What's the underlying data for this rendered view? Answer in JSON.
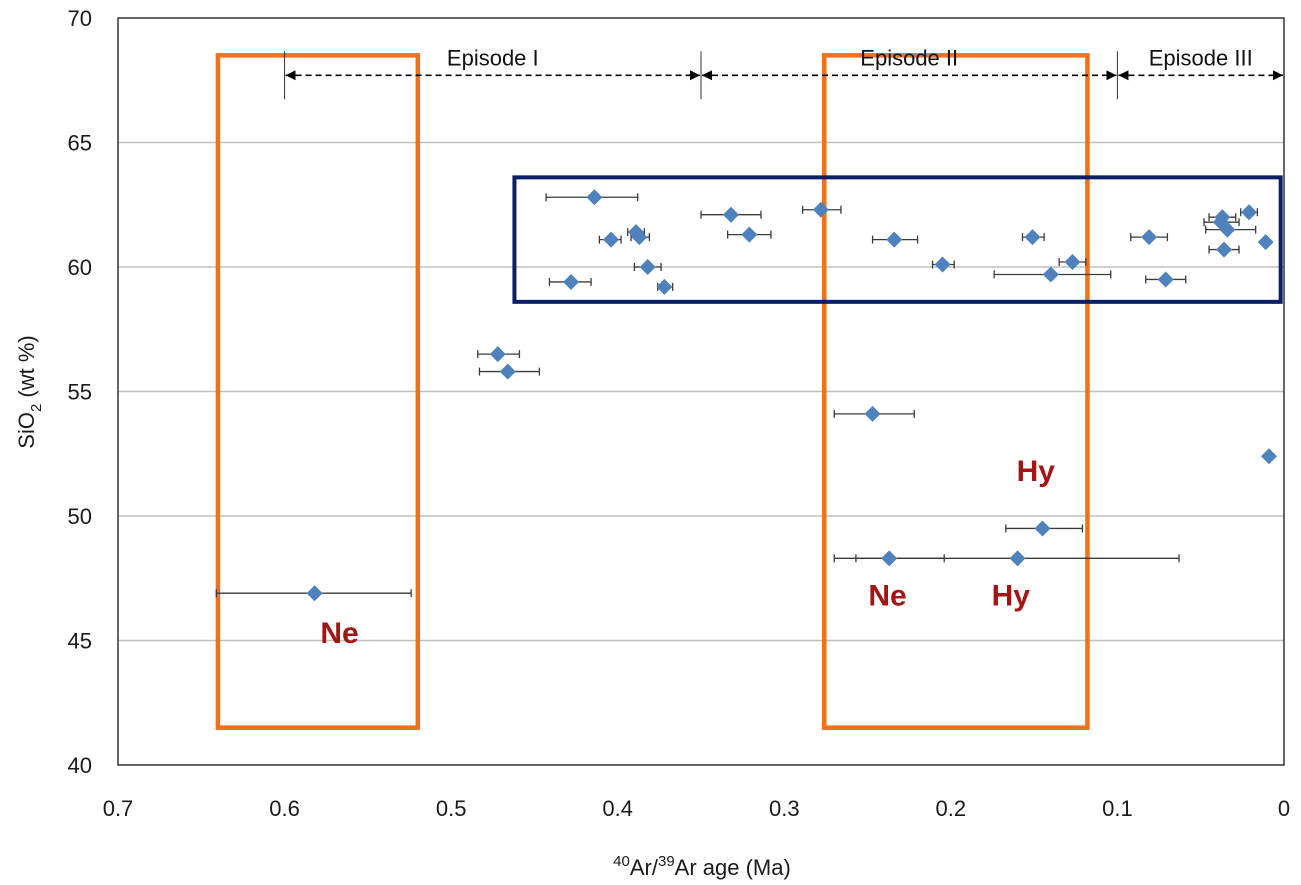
{
  "chart_data": {
    "type": "scatter",
    "xlabel": "40Ar/39Ar age (Ma)",
    "xlabel_parts": {
      "sup1": "40",
      "text1": "Ar/",
      "sup2": "39",
      "text2": "Ar age (Ma)"
    },
    "ylabel": "SiO2 (wt %)",
    "ylabel_parts": {
      "text1": "SiO",
      "sub": "2",
      "text2": " (wt %)"
    },
    "xlim": [
      0.7,
      0
    ],
    "ylim": [
      40,
      70
    ],
    "x_reversed": true,
    "grid": "horizontal",
    "x_ticks": [
      0.7,
      0.6,
      0.5,
      0.4,
      0.3,
      0.2,
      0.1,
      0
    ],
    "x_tick_labels": [
      "0.7",
      "0.6",
      "0.5",
      "0.4",
      "0.3",
      "0.2",
      "0.1",
      "0"
    ],
    "y_ticks": [
      40,
      45,
      50,
      55,
      60,
      65,
      70
    ],
    "y_tick_labels": [
      "40",
      "45",
      "50",
      "55",
      "60",
      "65",
      "70"
    ],
    "colors": {
      "points": "#4f81bd",
      "error_bars": "#3a3a3a",
      "grid": "#bfbfbf",
      "orange_box": "#f0701e",
      "blue_box": "#0b1f66",
      "rock_label": "#a31515"
    },
    "series": [
      {
        "marker": "diamond",
        "points": [
          {
            "x": 0.582,
            "y": 46.9,
            "xerr": [
              0.641,
              0.524
            ]
          },
          {
            "x": 0.472,
            "y": 56.5,
            "xerr": [
              0.484,
              0.459
            ]
          },
          {
            "x": 0.466,
            "y": 55.8,
            "xerr": [
              0.483,
              0.447
            ]
          },
          {
            "x": 0.428,
            "y": 59.4,
            "xerr": [
              0.441,
              0.416
            ]
          },
          {
            "x": 0.414,
            "y": 62.8,
            "xerr": [
              0.443,
              0.388
            ]
          },
          {
            "x": 0.404,
            "y": 61.1,
            "xerr": [
              0.411,
              0.398
            ]
          },
          {
            "x": 0.389,
            "y": 61.4,
            "xerr": [
              0.394,
              0.384
            ]
          },
          {
            "x": 0.387,
            "y": 61.2,
            "xerr": [
              0.392,
              0.381
            ]
          },
          {
            "x": 0.382,
            "y": 60.0,
            "xerr": [
              0.39,
              0.374
            ]
          },
          {
            "x": 0.372,
            "y": 59.2,
            "xerr": [
              0.376,
              0.367
            ]
          },
          {
            "x": 0.332,
            "y": 62.1,
            "xerr": [
              0.35,
              0.314
            ]
          },
          {
            "x": 0.321,
            "y": 61.3,
            "xerr": [
              0.334,
              0.308
            ]
          },
          {
            "x": 0.278,
            "y": 62.3,
            "xerr": [
              0.289,
              0.266
            ]
          },
          {
            "x": 0.247,
            "y": 54.1,
            "xerr": [
              0.27,
              0.222
            ]
          },
          {
            "x": 0.237,
            "y": 48.3,
            "xerr": [
              0.27,
              0.204
            ]
          },
          {
            "x": 0.234,
            "y": 61.1,
            "xerr": [
              0.247,
              0.22
            ]
          },
          {
            "x": 0.205,
            "y": 60.1,
            "xerr": [
              0.211,
              0.198
            ]
          },
          {
            "x": 0.16,
            "y": 48.3,
            "xerr": [
              0.257,
              0.063
            ]
          },
          {
            "x": 0.151,
            "y": 61.2,
            "xerr": [
              0.157,
              0.144
            ]
          },
          {
            "x": 0.145,
            "y": 49.5,
            "xerr": [
              0.167,
              0.121
            ]
          },
          {
            "x": 0.14,
            "y": 59.7,
            "xerr": [
              0.174,
              0.104
            ]
          },
          {
            "x": 0.127,
            "y": 60.2,
            "xerr": [
              0.135,
              0.119
            ]
          },
          {
            "x": 0.081,
            "y": 61.2,
            "xerr": [
              0.092,
              0.07
            ]
          },
          {
            "x": 0.071,
            "y": 59.5,
            "xerr": [
              0.083,
              0.059
            ]
          },
          {
            "x": 0.038,
            "y": 61.8,
            "xerr": [
              0.048,
              0.027
            ]
          },
          {
            "x": 0.037,
            "y": 62.0,
            "xerr": [
              0.045,
              0.029
            ]
          },
          {
            "x": 0.034,
            "y": 61.5,
            "xerr": [
              0.047,
              0.017
            ]
          },
          {
            "x": 0.036,
            "y": 60.7,
            "xerr": [
              0.045,
              0.027
            ]
          },
          {
            "x": 0.021,
            "y": 62.2,
            "xerr": [
              0.026,
              0.016
            ]
          },
          {
            "x": 0.011,
            "y": 61.0,
            "xerr": null
          },
          {
            "x": 0.009,
            "y": 52.4,
            "xerr": null
          }
        ]
      }
    ],
    "episodes": [
      {
        "label": "Episode I",
        "from": 0.6,
        "to": 0.35,
        "y": 67.7
      },
      {
        "label": "Episode II",
        "from": 0.35,
        "to": 0.1,
        "y": 67.7
      },
      {
        "label": "Episode III",
        "from": 0.1,
        "to": 0.0,
        "y": 67.7
      }
    ],
    "episode_dividers": [
      0.6,
      0.35,
      0.1,
      0.0
    ],
    "regions": [
      {
        "kind": "orange",
        "x0": 0.64,
        "x1": 0.52,
        "y0": 41.5,
        "y1": 68.5
      },
      {
        "kind": "orange",
        "x0": 0.276,
        "x1": 0.118,
        "y0": 41.5,
        "y1": 68.5
      },
      {
        "kind": "blue",
        "x0": 0.462,
        "x1": 0.002,
        "y0": 58.6,
        "y1": 63.6
      }
    ],
    "annotations": [
      {
        "text": "Ne",
        "x": 0.567,
        "y": 44.9
      },
      {
        "text": "Ne",
        "x": 0.238,
        "y": 46.4
      },
      {
        "text": "Hy",
        "x": 0.164,
        "y": 46.4
      },
      {
        "text": "Hy",
        "x": 0.149,
        "y": 51.4
      }
    ]
  }
}
